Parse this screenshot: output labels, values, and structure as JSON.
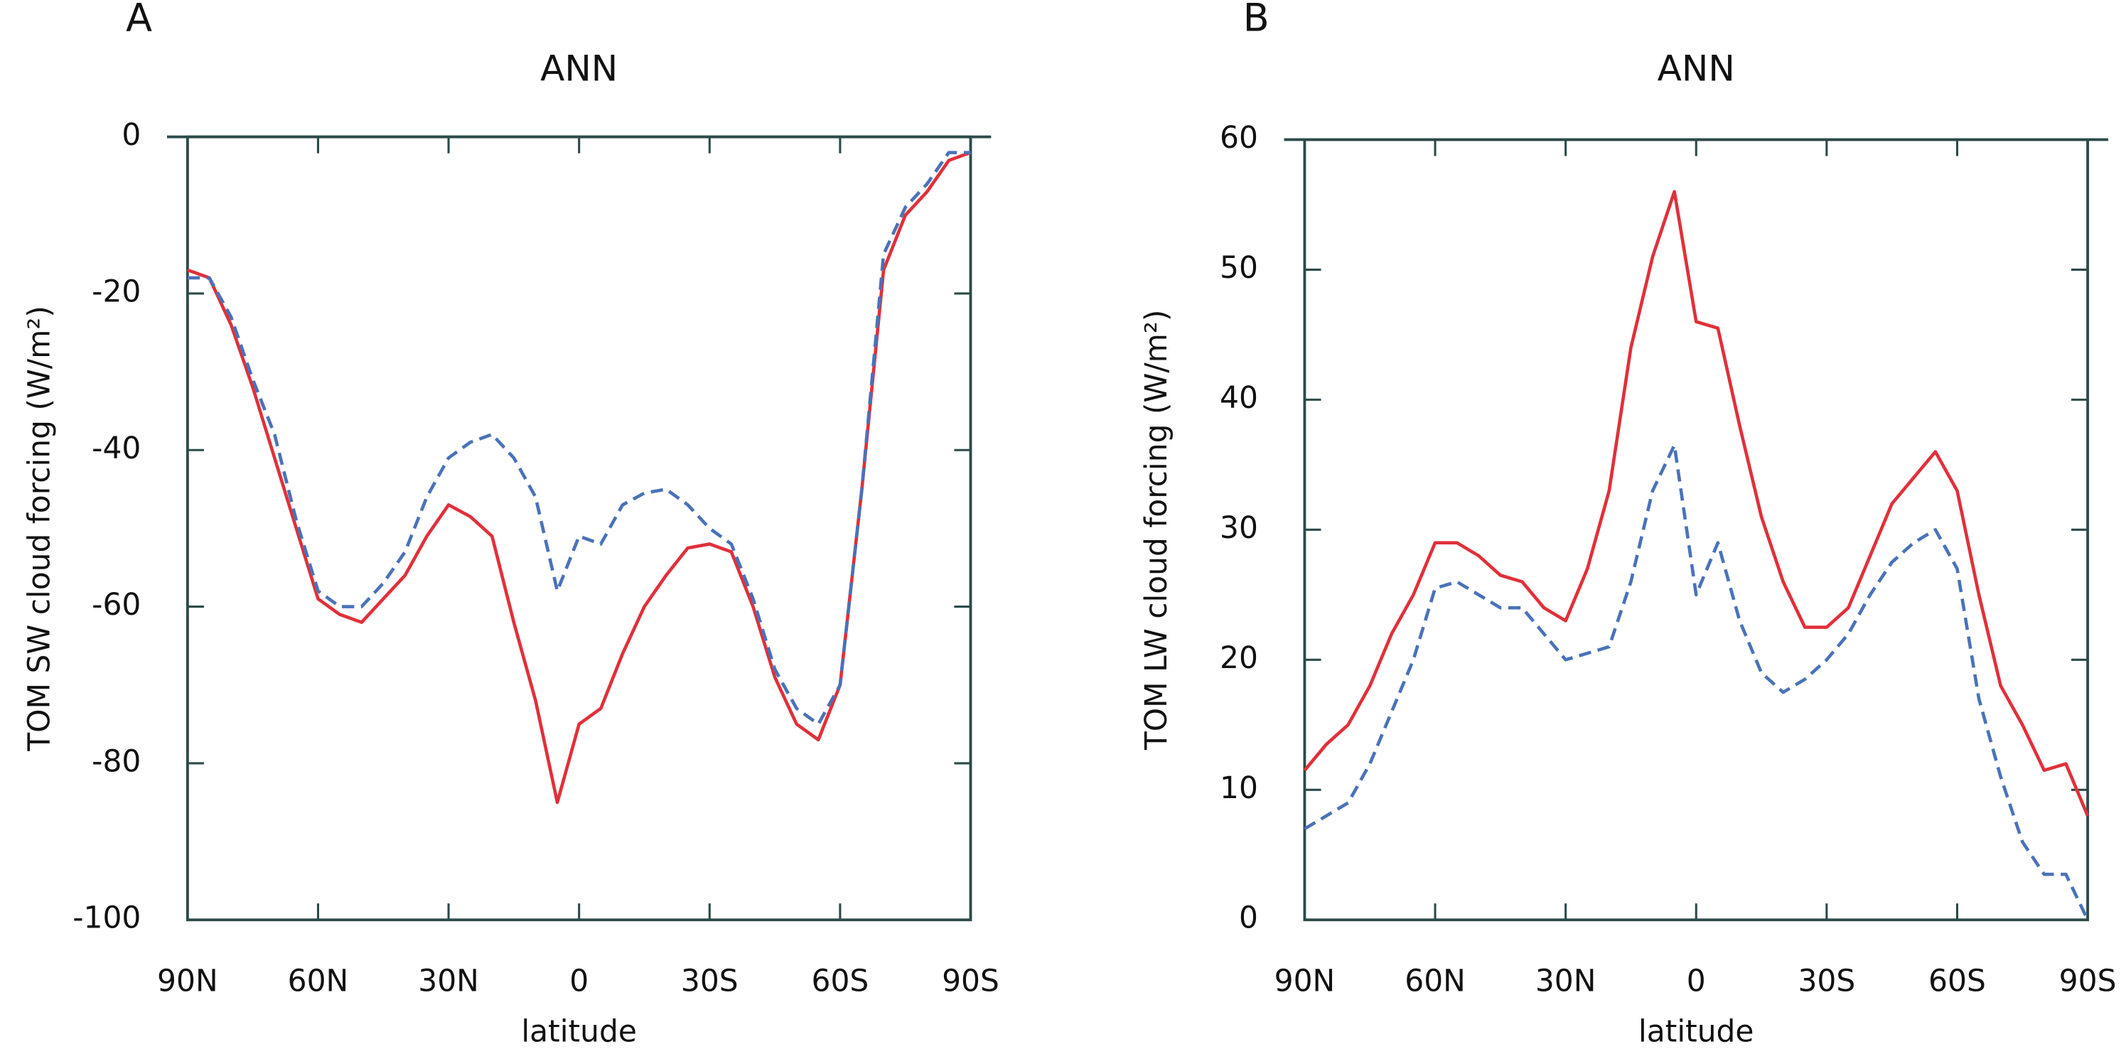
{
  "chart_data": [
    {
      "type": "line",
      "panel_label": "A",
      "title": "ANN",
      "x_label": "latitude",
      "y_label": "TOM SW cloud forcing (W/m²)",
      "x": [
        90,
        85,
        80,
        75,
        70,
        65,
        60,
        55,
        50,
        45,
        40,
        35,
        30,
        25,
        20,
        15,
        10,
        5,
        0,
        -5,
        -10,
        -15,
        -20,
        -25,
        -30,
        -35,
        -40,
        -45,
        -50,
        -55,
        -60,
        -65,
        -70,
        -75,
        -80,
        -85,
        -90
      ],
      "xlim": [
        90,
        -90
      ],
      "xticks": [
        {
          "value": 90,
          "label": "90N"
        },
        {
          "value": 60,
          "label": "60N"
        },
        {
          "value": 30,
          "label": "30N"
        },
        0,
        {
          "value": -30,
          "label": "30S"
        },
        {
          "value": -60,
          "label": "60S"
        },
        {
          "value": -90,
          "label": "90S"
        }
      ],
      "ylim": [
        -100,
        0
      ],
      "yticks": [
        -100,
        -80,
        -60,
        -40,
        -20,
        0
      ],
      "series": [
        {
          "color": "#e0303a",
          "dashed": false,
          "values": [
            -17,
            -18,
            -24,
            -32,
            -41,
            -50,
            -59,
            -61,
            -62,
            -59,
            -56,
            -51,
            -47,
            -48.5,
            -51,
            -62,
            -72,
            -85,
            -75,
            -73,
            -66,
            -60,
            -56,
            -52.5,
            -52,
            -53,
            -60,
            -69,
            -75,
            -77,
            -70,
            -45,
            -17,
            -10,
            -7,
            -3,
            -2
          ]
        },
        {
          "color": "#4a72b8",
          "dashed": true,
          "values": [
            -18,
            -18,
            -23,
            -31,
            -38,
            -49,
            -58,
            -60,
            -60,
            -57,
            -53,
            -46,
            -41,
            -39,
            -38,
            -41,
            -46,
            -58,
            -51,
            -52,
            -47,
            -45.5,
            -45,
            -47,
            -50,
            -52,
            -59,
            -68,
            -73,
            -75,
            -70,
            -45,
            -15,
            -9,
            -6,
            -2,
            -2
          ]
        }
      ]
    },
    {
      "type": "line",
      "panel_label": "B",
      "title": "ANN",
      "x_label": "latitude",
      "y_label": "TOM LW cloud forcing (W/m²)",
      "x": [
        90,
        85,
        80,
        75,
        70,
        65,
        60,
        55,
        50,
        45,
        40,
        35,
        30,
        25,
        20,
        15,
        10,
        5,
        0,
        -5,
        -10,
        -15,
        -20,
        -25,
        -30,
        -35,
        -40,
        -45,
        -50,
        -55,
        -60,
        -65,
        -70,
        -75,
        -80,
        -85,
        -90
      ],
      "xlim": [
        90,
        -90
      ],
      "xticks": [
        {
          "value": 90,
          "label": "90N"
        },
        {
          "value": 60,
          "label": "60N"
        },
        {
          "value": 30,
          "label": "30N"
        },
        0,
        {
          "value": -30,
          "label": "30S"
        },
        {
          "value": -60,
          "label": "60S"
        },
        {
          "value": -90,
          "label": "90S"
        }
      ],
      "ylim": [
        0,
        60
      ],
      "yticks": [
        0,
        10,
        20,
        30,
        40,
        50,
        60
      ],
      "series": [
        {
          "color": "#e0303a",
          "dashed": false,
          "values": [
            11.5,
            13.5,
            15,
            18,
            22,
            25,
            29,
            29,
            28,
            26.5,
            26,
            24,
            23,
            27,
            33,
            44,
            51,
            56,
            46,
            45.5,
            38,
            31,
            26,
            22.5,
            22.5,
            24,
            28,
            32,
            34,
            36,
            33,
            25,
            18,
            15,
            11.5,
            12,
            8
          ]
        },
        {
          "color": "#4a72b8",
          "dashed": true,
          "values": [
            7,
            8,
            9,
            12,
            16,
            20,
            25.5,
            26,
            25,
            24,
            24,
            22,
            20,
            20.5,
            21,
            26,
            33,
            36.5,
            25,
            29,
            23,
            19,
            17.5,
            18.5,
            20,
            22,
            25,
            27.5,
            29,
            30,
            27,
            17,
            11,
            6,
            3.5,
            3.5,
            0
          ]
        }
      ]
    }
  ]
}
